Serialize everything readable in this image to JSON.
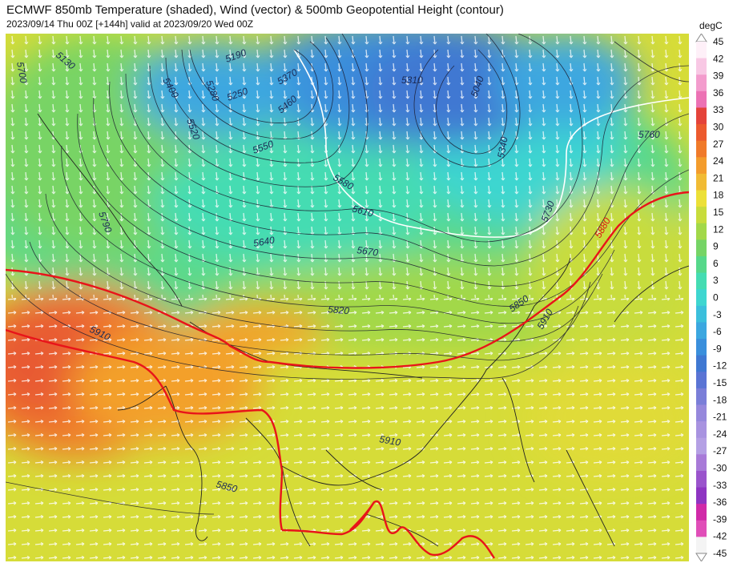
{
  "header": {
    "title": "ECMWF 850mb Temperature (shaded), Wind (vector) & 500mb Geopotential Height (contour)",
    "subtitle": "2023/09/14 Thu 00Z [+144h] valid at 2023/09/20 Wed 00Z"
  },
  "colorbar": {
    "unit": "degC",
    "ticks": [
      "45",
      "42",
      "39",
      "36",
      "33",
      "30",
      "27",
      "24",
      "21",
      "18",
      "15",
      "12",
      "9",
      "6",
      "3",
      "0",
      "-3",
      "-6",
      "-9",
      "-12",
      "-15",
      "-18",
      "-21",
      "-24",
      "-27",
      "-30",
      "-33",
      "-36",
      "-39",
      "-42",
      "-45"
    ],
    "colors": [
      "#fef0f8",
      "#f8c8e4",
      "#f39ccd",
      "#ec72b4",
      "#e4433a",
      "#ec5a2e",
      "#f07a2a",
      "#f39c2c",
      "#f1bb34",
      "#ece037",
      "#c8dc3c",
      "#a2d849",
      "#76d466",
      "#56d88a",
      "#44dcb2",
      "#3ed6d0",
      "#3cbfdc",
      "#3ca7e0",
      "#3a8fdc",
      "#3f78d2",
      "#5a74d4",
      "#7a7ed8",
      "#9688dc",
      "#a893e0",
      "#b4a0e4",
      "#a87ad8",
      "#9a54cc",
      "#8e35c2",
      "#d02aa8",
      "#e04eb8",
      "#f4f4f4"
    ]
  },
  "map": {
    "contours_500mb": [
      {
        "label": "5700"
      },
      {
        "label": "5130"
      },
      {
        "label": "5400"
      },
      {
        "label": "5190"
      },
      {
        "label": "5250"
      },
      {
        "label": "5280"
      },
      {
        "label": "5370"
      },
      {
        "label": "5460"
      },
      {
        "label": "5520"
      },
      {
        "label": "5550"
      },
      {
        "label": "5580"
      },
      {
        "label": "5610"
      },
      {
        "label": "5640"
      },
      {
        "label": "5670"
      },
      {
        "label": "5790"
      },
      {
        "label": "5310"
      },
      {
        "label": "5040"
      },
      {
        "label": "5340"
      },
      {
        "label": "5760"
      },
      {
        "label": "5730"
      },
      {
        "label": "5820"
      },
      {
        "label": "5850"
      },
      {
        "label": "5910"
      },
      {
        "label": "5880"
      }
    ]
  }
}
